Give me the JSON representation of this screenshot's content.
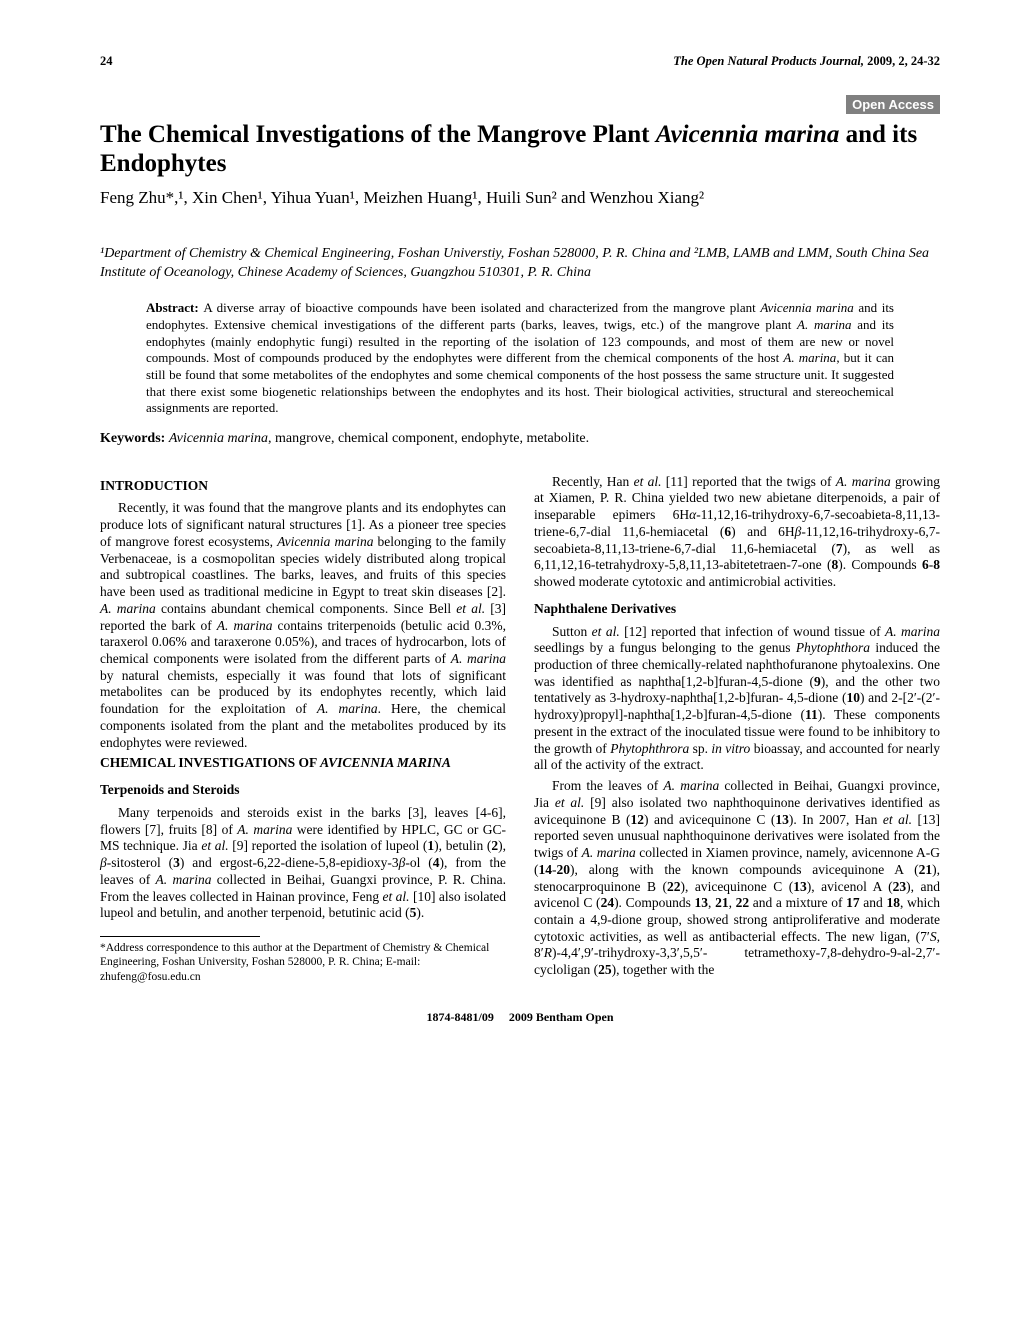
{
  "header": {
    "page_num": "24",
    "journal": "The Open Natural Products Journal,",
    "year_vol": " 2009, 2, 24-32"
  },
  "badge": "Open Access",
  "title_prefix": "The Chemical Investigations of the Mangrove Plant ",
  "title_ital": "Avicennia marina",
  "title_suffix": " and its Endophytes",
  "authors": "Feng Zhu*,¹, Xin Chen¹, Yihua Yuan¹, Meizhen Huang¹, Huili Sun² and Wenzhou Xiang²",
  "affil": "¹Department of Chemistry & Chemical Engineering, Foshan Universtiy, Foshan 528000, P. R. China and ²LMB, LAMB and LMM, South China Sea Institute of Oceanology, Chinese Academy of Sciences, Guangzhou 510301, P. R. China",
  "abstract_label": "Abstract: ",
  "abstract_text_1": "A diverse array of bioactive compounds have been isolated and characterized from the mangrove plant ",
  "abstract_ital_1": "Avicennia marina",
  "abstract_text_2": " and its endophytes. Extensive chemical investigations of the different parts (barks, leaves, twigs, etc.) of the mangrove plant ",
  "abstract_ital_2": "A. marina",
  "abstract_text_3": " and its endophytes (mainly endophytic fungi) resulted in the reporting of the isolation of 123 compounds, and most of them are new or novel compounds. Most of compounds produced by the endophytes were different from the chemical components of the host ",
  "abstract_ital_3": "A. marina",
  "abstract_text_4": ", but it can still be found that some metabolites of the endophytes and some chemical components of the host possess the same structure unit. It suggested that there exist some biogenetic relationships between the endophytes and its host. Their biological activities, structural and stereochemical assignments are reported.",
  "keywords_label": "Keywords: ",
  "keywords_ital": "Avicennia marina",
  "keywords_text": ", mangrove, chemical component, endophyte, metabolite.",
  "intro_heading": "INTRODUCTION",
  "intro_p1a": "Recently, it was found that the mangrove plants and its endophytes can produce lots of significant natural structures [1]. As a pioneer tree species of mangrove forest ecosystems, ",
  "intro_p1b": "Avicennia marina",
  "intro_p1c": " belonging to the family Verbenaceae, is a cosmopolitan species widely distributed along tropical and subtropical coastlines. The barks, leaves, and fruits of this species have been used as traditional medicine in Egypt to treat skin diseases [2]. ",
  "intro_p1d": "A. marina",
  "intro_p1e": " contains abundant chemical components. Since Bell ",
  "intro_p1f": "et al.",
  "intro_p1g": " [3] reported the bark of ",
  "intro_p1h": "A. marina",
  "intro_p1i": " contains triterpenoids (betulic acid 0.3%, taraxerol 0.06% and taraxerone 0.05%), and traces of hydrocarbon, lots of chemical components were isolated from the different parts of ",
  "intro_p1j": "A. marina",
  "intro_p1k": " by natural chemists, especially it was found that lots of significant metabolites can be produced by its endophytes recently, which laid foundation for the exploitation of ",
  "intro_p1l": "A. marina",
  "intro_p1m": ". Here, the chemical components isolated from the plant and the metabolites produced by its endophytes were reviewed.",
  "chem_heading_a": "CHEMICAL INVESTIGATIONS OF ",
  "chem_heading_b": "AVICENNIA MARINA",
  "terp_heading": "Terpenoids and Steroids",
  "terp_p1a": "Many terpenoids and steroids exist in the barks [3], leaves [4-6], flowers [7], fruits [8] of ",
  "terp_p1b": "A. marina",
  "terp_p1c": " were identified by HPLC, GC or GC-MS technique. Jia ",
  "terp_p1d": "et al.",
  "terp_p1e": " [9] reported the isolation of lupeol (",
  "terp_p1e2": "1",
  "terp_p1f": "), betulin (",
  "terp_p1f2": "2",
  "terp_p1g": "), ",
  "terp_p1h": "β",
  "terp_p1i": "-sitosterol (",
  "terp_p1i2": "3",
  "terp_p1j": ") and ergost-6,22-diene-5,8-epidioxy-3",
  "terp_p1k": "β",
  "terp_p1l": "-ol (",
  "terp_p1l2": "4",
  "terp_p1m": "), from the leaves of ",
  "terp_p1n": "A. marina",
  "terp_p1o": " collected in Beihai, Guangxi province, P. R. China. From the leaves collected in Hainan province, Feng ",
  "terp_p1p": "et al.",
  "terp_p1q": " [10] also isolated lupeol and betulin, and another terpenoid, betutinic acid (",
  "terp_p1q2": "5",
  "terp_p1r": ").",
  "footnote": "*Address correspondence to this author at the Department of Chemistry & Chemical Engineering, Foshan University, Foshan 528000, P. R. China; E-mail: zhufeng@fosu.edu.cn",
  "r_p1a": "Recently, Han ",
  "r_p1b": "et al.",
  "r_p1c": " [11] reported that the twigs of ",
  "r_p1d": "A. marina",
  "r_p1e": " growing at Xiamen, P. R. China yielded two new abietane diterpenoids, a pair of inseparable epimers 6H",
  "r_p1f": "α",
  "r_p1g": "-11,12,16-trihydroxy-6,7-secoabieta-8,11,13-triene-6,7-dial 11,6-hemiacetal (",
  "r_p1g2": "6",
  "r_p1h": ") and 6H",
  "r_p1i": "β",
  "r_p1j": "-11,12,16-trihydroxy-6,7-secoabieta-8,11,13-triene-6,7-dial 11,6-hemiacetal (",
  "r_p1j2": "7",
  "r_p1k": "), as well as 6,11,12,16-tetrahydroxy-5,8,11,13-abitetetraen-7-one (",
  "r_p1k2": "8",
  "r_p1l": "). Compounds ",
  "r_p1l2": "6",
  "r_p1l3": "-",
  "r_p1l4": "8",
  "r_p1m": " showed moderate cytotoxic and antimicrobial activities.",
  "naph_heading": "Naphthalene Derivatives",
  "naph_p1a": "Sutton ",
  "naph_p1b": "et al.",
  "naph_p1c": " [12] reported that infection of wound tissue of ",
  "naph_p1d": "A. marina",
  "naph_p1e": " seedlings by a fungus belonging to the genus ",
  "naph_p1f": "Phytophthora",
  "naph_p1g": " induced the production of three chemically-related naphthofuranone phytoalexins. One was identified as naphtha[1,2-b]furan-4,5-dione (",
  "naph_p1g2": "9",
  "naph_p1h": "), and the other two tentatively as 3-hydroxy-naphtha[1,2-b]furan- 4,5-dione (",
  "naph_p1h2": "10",
  "naph_p1i": ") and 2-[2′-(2′-hydroxy)propyl]-naphtha[1,2-b]furan-4,5-dione (",
  "naph_p1i2": "11",
  "naph_p1j": "). These components present in the extract of the inoculated tissue were found to be inhibitory to the growth of ",
  "naph_p1k": "Phytophthrora",
  "naph_p1l": " sp. ",
  "naph_p1m": "in vitro",
  "naph_p1n": " bioassay, and accounted for nearly all of the activity of the extract.",
  "naph_p2a": "From the leaves of ",
  "naph_p2b": "A. marina",
  "naph_p2c": " collected in Beihai, Guangxi province, Jia ",
  "naph_p2d": "et al.",
  "naph_p2e": " [9] also isolated two naphthoquinone derivatives identified as avicequinone B (",
  "naph_p2e2": "12",
  "naph_p2f": ") and avicequinone C (",
  "naph_p2f2": "13",
  "naph_p2g": "). In 2007, Han ",
  "naph_p2h": "et al.",
  "naph_p2i": " [13] reported seven unusual naphthoquinone derivatives were isolated from the twigs of ",
  "naph_p2j": "A. marina",
  "naph_p2k": " collected in Xiamen province, namely, avicennone A-G (",
  "naph_p2k2": "14",
  "naph_p2k3": "-",
  "naph_p2k4": "20",
  "naph_p2l": "), along with the known compounds avicequinone A (",
  "naph_p2l2": "21",
  "naph_p2m": "), stenocarproquinone B (",
  "naph_p2m2": "22",
  "naph_p2n": "), avicequinone C (",
  "naph_p2n2": "13",
  "naph_p2o": "), avicenol A (",
  "naph_p2o2": "23",
  "naph_p2p": "), and avicenol C (",
  "naph_p2p2": "24",
  "naph_p2q": "). Compounds ",
  "naph_p2q2": "13",
  "naph_p2q3": ", ",
  "naph_p2q4": "21",
  "naph_p2q5": ", ",
  "naph_p2q6": "22",
  "naph_p2r": " and a mixture of ",
  "naph_p2r2": "17",
  "naph_p2r3": " and ",
  "naph_p2r4": "18",
  "naph_p2s": ", which contain a 4,9-dione group, showed strong antiproliferative and moderate cytotoxic activities, as well as antibacterial effects. The new ligan, (7′",
  "naph_p2t": "S",
  "naph_p2u": ", 8′",
  "naph_p2v": "R",
  "naph_p2w": ")-4,4′,9′-trihydroxy-3,3′,5,5′- tetramethoxy-7,8-dehydro-9-al-2,7′-cycloligan (",
  "naph_p2w2": "25",
  "naph_p2x": "), together with the",
  "footer_left": "1874-8481/09",
  "footer_right": "2009 Bentham Open"
}
